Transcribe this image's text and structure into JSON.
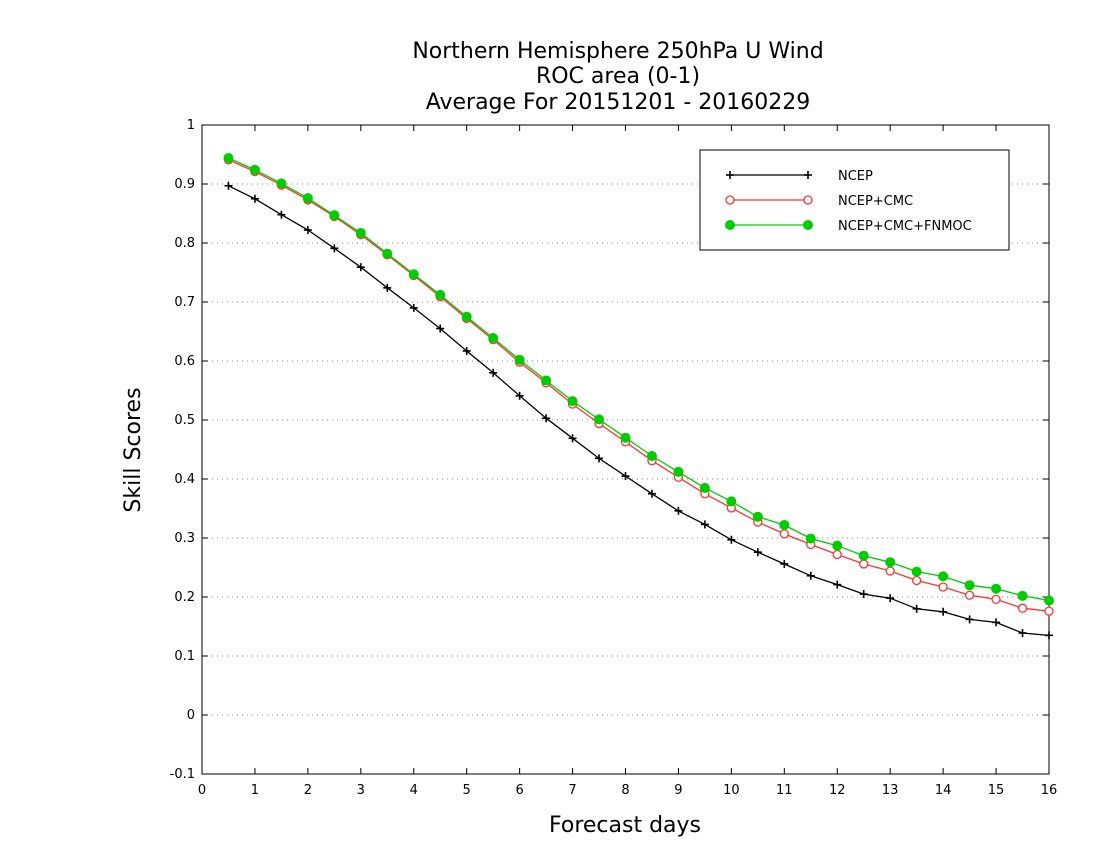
{
  "chart_data": {
    "type": "line",
    "title": [
      "Northern Hemisphere 250hPa U Wind",
      "ROC area (0-1)",
      "Average For 20151201 - 20160229"
    ],
    "xlabel": "Forecast days",
    "ylabel": "Skill Scores",
    "xlim": [
      0,
      16
    ],
    "ylim": [
      -0.1,
      1
    ],
    "xticks": [
      "0",
      "1",
      "2",
      "3",
      "4",
      "5",
      "6",
      "7",
      "8",
      "9",
      "10",
      "11",
      "12",
      "13",
      "14",
      "15",
      "16"
    ],
    "yticks": [
      "-0.1",
      "0",
      "0.1",
      "0.2",
      "0.3",
      "0.4",
      "0.5",
      "0.6",
      "0.7",
      "0.8",
      "0.9",
      "1"
    ],
    "grid": "horizontal-dotted",
    "legend_position": "top-right",
    "x": [
      0.5,
      1,
      1.5,
      2,
      2.5,
      3,
      3.5,
      4,
      4.5,
      5,
      5.5,
      6,
      6.5,
      7,
      7.5,
      8,
      8.5,
      9,
      9.5,
      10,
      10.5,
      11,
      11.5,
      12,
      12.5,
      13,
      13.5,
      14,
      14.5,
      15,
      15.5,
      16
    ],
    "series": [
      {
        "name": "NCEP",
        "color": "#000000",
        "marker": "plus",
        "values": [
          0.897,
          0.875,
          0.848,
          0.822,
          0.791,
          0.759,
          0.724,
          0.69,
          0.655,
          0.617,
          0.58,
          0.541,
          0.503,
          0.469,
          0.435,
          0.405,
          0.375,
          0.346,
          0.323,
          0.297,
          0.276,
          0.256,
          0.236,
          0.221,
          0.205,
          0.198,
          0.18,
          0.175,
          0.162,
          0.157,
          0.139,
          0.135
        ]
      },
      {
        "name": "NCEP+CMC",
        "color": "#ff3333",
        "marker": "open-circle",
        "values": [
          0.941,
          0.921,
          0.898,
          0.873,
          0.845,
          0.814,
          0.78,
          0.745,
          0.709,
          0.672,
          0.636,
          0.598,
          0.563,
          0.527,
          0.494,
          0.463,
          0.431,
          0.403,
          0.375,
          0.351,
          0.327,
          0.307,
          0.289,
          0.272,
          0.256,
          0.244,
          0.228,
          0.217,
          0.203,
          0.196,
          0.181,
          0.176
        ]
      },
      {
        "name": "NCEP+CMC+FNMOC",
        "color": "#00cc00",
        "marker": "filled-circle",
        "values": [
          0.944,
          0.924,
          0.901,
          0.876,
          0.847,
          0.817,
          0.782,
          0.747,
          0.712,
          0.675,
          0.639,
          0.602,
          0.567,
          0.532,
          0.501,
          0.47,
          0.439,
          0.412,
          0.385,
          0.362,
          0.336,
          0.322,
          0.299,
          0.287,
          0.27,
          0.259,
          0.243,
          0.235,
          0.22,
          0.214,
          0.202,
          0.194
        ]
      }
    ]
  }
}
